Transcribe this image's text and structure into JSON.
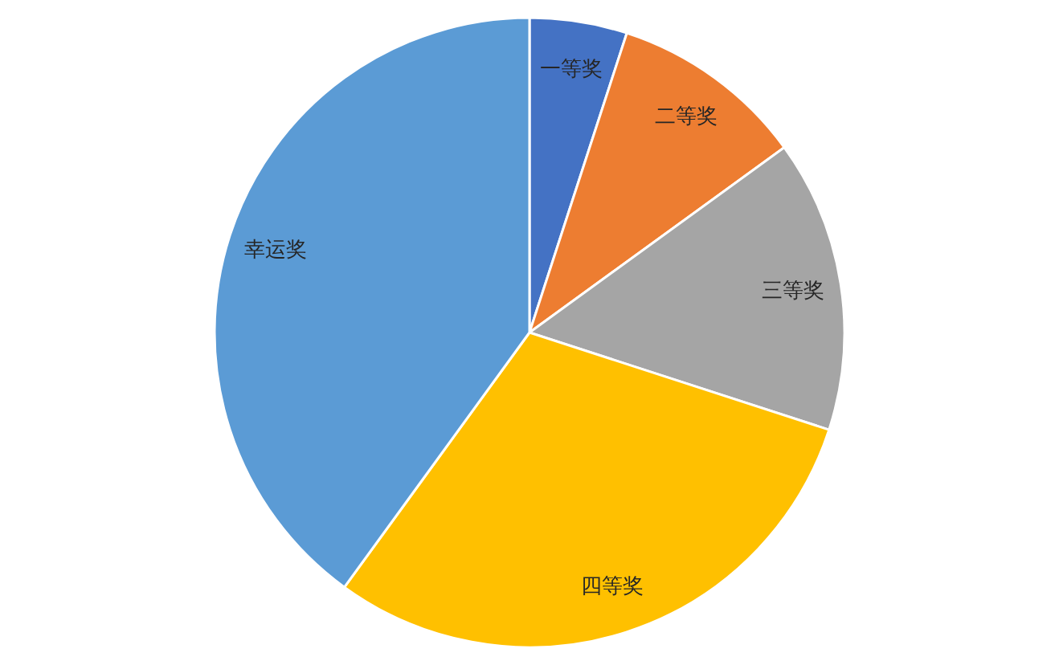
{
  "chart_data": {
    "type": "pie",
    "categories": [
      "一等奖",
      "二等奖",
      "三等奖",
      "四等奖",
      "幸运奖"
    ],
    "values": [
      5,
      10,
      15,
      30,
      40
    ],
    "colors": [
      "#4472c4",
      "#ed7d31",
      "#a5a5a5",
      "#ffc000",
      "#5b9bd5"
    ]
  }
}
